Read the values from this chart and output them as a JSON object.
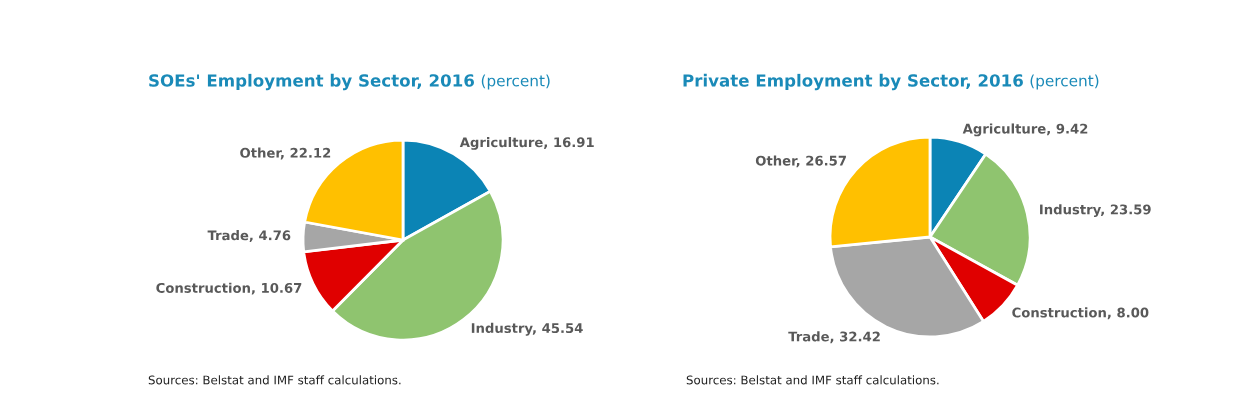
{
  "chart_data": [
    {
      "type": "pie",
      "title": "SOEs' Employment by Sector, 2016",
      "subtitle": "(percent)",
      "categories": [
        "Agriculture",
        "Industry",
        "Construction",
        "Trade",
        "Other"
      ],
      "values": [
        16.91,
        45.54,
        10.67,
        4.76,
        22.12
      ],
      "value_labels": [
        "16.91",
        "45.54",
        "10.67",
        "4.76",
        "22.12"
      ],
      "colors": [
        "#0b84b5",
        "#8fc46f",
        "#e00000",
        "#a6a6a6",
        "#ffc000"
      ],
      "annotations": [
        "Sources: Belstat and IMF staff calculations."
      ]
    },
    {
      "type": "pie",
      "title": "Private Employment by Sector, 2016",
      "subtitle": "(percent)",
      "categories": [
        "Agriculture",
        "Industry",
        "Construction",
        "Trade",
        "Other"
      ],
      "values": [
        9.42,
        23.59,
        8.0,
        32.42,
        26.57
      ],
      "value_labels": [
        "9.42",
        "23.59",
        "8.00",
        "32.42",
        "26.57"
      ],
      "colors": [
        "#0b84b5",
        "#8fc46f",
        "#e00000",
        "#a6a6a6",
        "#ffc000"
      ],
      "annotations": [
        "Sources: Belstat and IMF staff calculations."
      ]
    }
  ]
}
